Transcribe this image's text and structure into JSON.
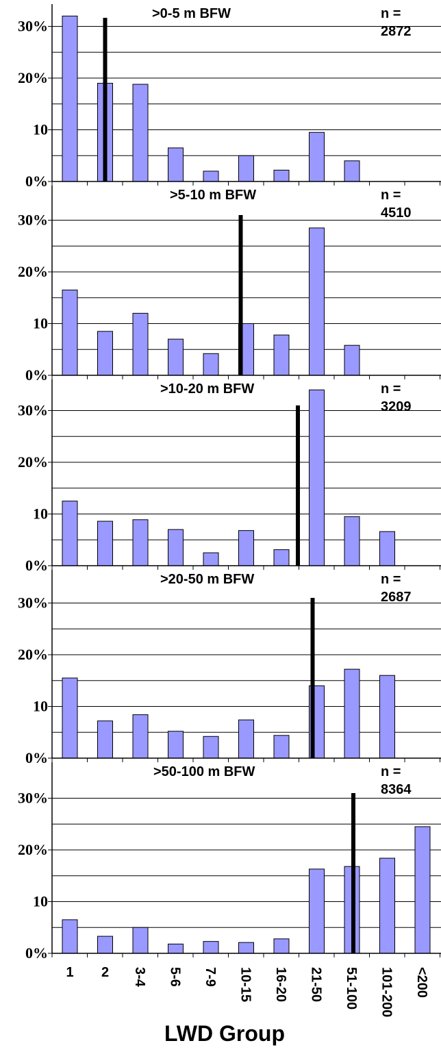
{
  "chart_data": {
    "type": "bar",
    "xlabel": "LWD Group",
    "categories": [
      "1",
      "2",
      "3-4",
      "5-6",
      "7-9",
      "10-15",
      "16-20",
      "21-50",
      "51-100",
      "101-200",
      "<200"
    ],
    "y_tick_labels": [
      "0%",
      "10",
      "20%",
      "30%"
    ],
    "ylim": [
      0,
      35
    ],
    "grid": "horizontal",
    "bar_color": "#9999ff",
    "panels": [
      {
        "title": ">0-5 m   BFW",
        "n_label": "n =",
        "n_value": "2872",
        "values": [
          32,
          19,
          18.8,
          6.5,
          2,
          5,
          2.2,
          9.5,
          4,
          0,
          0
        ],
        "median_marker_category": "2"
      },
      {
        "title": ">5-10 m   BFW",
        "n_label": "n =",
        "n_value": "4510",
        "values": [
          16.5,
          8.5,
          12,
          7,
          4.2,
          10,
          7.8,
          28.5,
          5.8,
          0,
          0
        ],
        "median_marker_category": "10-15"
      },
      {
        "title": ">10-20 m   BFW",
        "n_label": "n =",
        "n_value": "3209",
        "values": [
          12.5,
          8.6,
          8.9,
          7,
          2.5,
          6.8,
          3.1,
          34,
          9.5,
          6.6,
          0
        ],
        "median_marker_category": "16-20"
      },
      {
        "title": ">20-50 m   BFW",
        "n_label": "n =",
        "n_value": "2687",
        "values": [
          15.5,
          7.2,
          8.4,
          5.2,
          4.2,
          7.4,
          4.4,
          14,
          17.2,
          16,
          0
        ],
        "median_marker_category": "21-50"
      },
      {
        "title": ">50-100 m   BFW",
        "n_label": "n =",
        "n_value": "8364",
        "values": [
          6.5,
          3.3,
          5,
          1.8,
          2.3,
          2.1,
          2.8,
          16.3,
          16.8,
          18.4,
          24.5
        ],
        "median_marker_category": "51-100"
      }
    ]
  }
}
